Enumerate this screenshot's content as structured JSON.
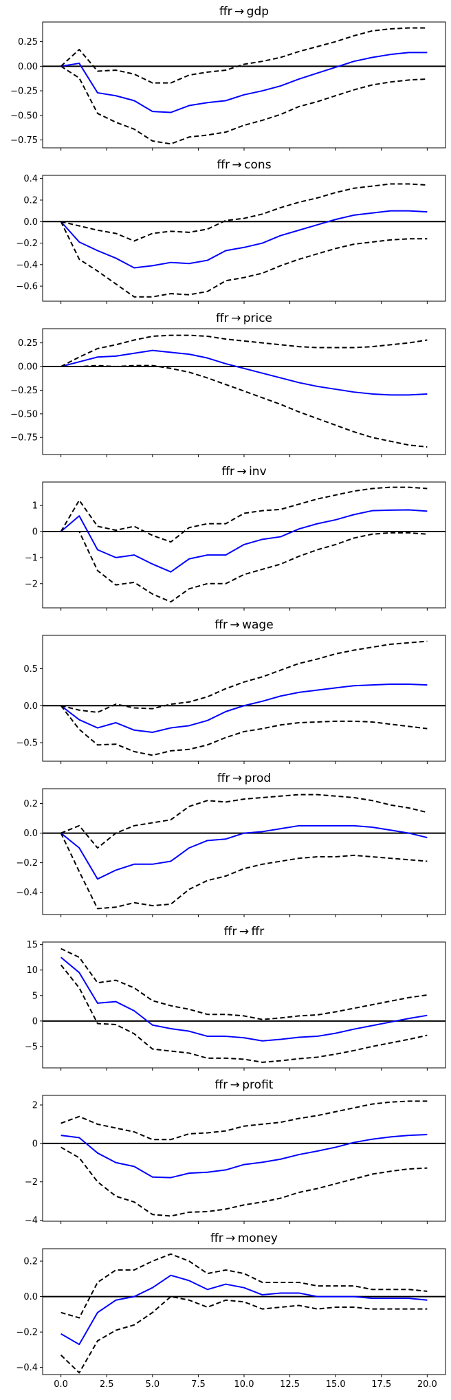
{
  "chart_data": [
    {
      "type": "line",
      "title": "ffr → gdp",
      "x": [
        0,
        1,
        2,
        3,
        4,
        5,
        6,
        7,
        8,
        9,
        10,
        11,
        12,
        13,
        14,
        15,
        16,
        17,
        18,
        19,
        20
      ],
      "series": [
        {
          "name": "irf",
          "values": [
            0,
            0.03,
            -0.27,
            -0.3,
            -0.35,
            -0.46,
            -0.47,
            -0.4,
            -0.37,
            -0.35,
            -0.29,
            -0.25,
            -0.2,
            -0.13,
            -0.07,
            -0.01,
            0.05,
            0.09,
            0.12,
            0.14,
            0.14
          ]
        },
        {
          "name": "upper",
          "values": [
            0,
            0.17,
            -0.05,
            -0.04,
            -0.08,
            -0.17,
            -0.17,
            -0.09,
            -0.06,
            -0.04,
            0.02,
            0.05,
            0.09,
            0.15,
            0.2,
            0.25,
            0.31,
            0.36,
            0.38,
            0.39,
            0.39
          ]
        },
        {
          "name": "lower",
          "values": [
            0,
            -0.12,
            -0.48,
            -0.57,
            -0.64,
            -0.76,
            -0.79,
            -0.72,
            -0.7,
            -0.67,
            -0.6,
            -0.55,
            -0.49,
            -0.41,
            -0.36,
            -0.3,
            -0.24,
            -0.19,
            -0.16,
            -0.14,
            -0.13
          ]
        }
      ],
      "ylim": [
        -0.83,
        0.45
      ],
      "yticks": [
        -0.75,
        -0.5,
        -0.25,
        0.0,
        0.25
      ],
      "ytick_labels": [
        "−0.75",
        "−0.50",
        "−0.25",
        "0.00",
        "0.25"
      ]
    },
    {
      "type": "line",
      "title": "ffr → cons",
      "x": [
        0,
        1,
        2,
        3,
        4,
        5,
        6,
        7,
        8,
        9,
        10,
        11,
        12,
        13,
        14,
        15,
        16,
        17,
        18,
        19,
        20
      ],
      "series": [
        {
          "name": "irf",
          "values": [
            0,
            -0.19,
            -0.27,
            -0.34,
            -0.43,
            -0.41,
            -0.38,
            -0.39,
            -0.36,
            -0.27,
            -0.24,
            -0.2,
            -0.13,
            -0.08,
            -0.03,
            0.02,
            0.06,
            0.08,
            0.1,
            0.1,
            0.09
          ]
        },
        {
          "name": "upper",
          "values": [
            0,
            -0.04,
            -0.08,
            -0.11,
            -0.18,
            -0.11,
            -0.09,
            -0.1,
            -0.07,
            0.01,
            0.03,
            0.07,
            0.13,
            0.18,
            0.22,
            0.27,
            0.31,
            0.33,
            0.35,
            0.35,
            0.34
          ]
        },
        {
          "name": "lower",
          "values": [
            0,
            -0.35,
            -0.46,
            -0.58,
            -0.7,
            -0.7,
            -0.67,
            -0.68,
            -0.65,
            -0.55,
            -0.52,
            -0.48,
            -0.41,
            -0.35,
            -0.3,
            -0.25,
            -0.21,
            -0.19,
            -0.17,
            -0.16,
            -0.16
          ]
        }
      ],
      "ylim": [
        -0.74,
        0.43
      ],
      "yticks": [
        -0.6,
        -0.4,
        -0.2,
        0.0,
        0.2,
        0.4
      ],
      "ytick_labels": [
        "−0.6",
        "−0.4",
        "−0.2",
        "0.0",
        "0.2",
        "0.4"
      ]
    },
    {
      "type": "line",
      "title": "ffr → price",
      "x": [
        0,
        1,
        2,
        3,
        4,
        5,
        6,
        7,
        8,
        9,
        10,
        11,
        12,
        13,
        14,
        15,
        16,
        17,
        18,
        19,
        20
      ],
      "series": [
        {
          "name": "irf",
          "values": [
            0,
            0.05,
            0.1,
            0.11,
            0.14,
            0.17,
            0.15,
            0.13,
            0.09,
            0.03,
            -0.02,
            -0.07,
            -0.12,
            -0.17,
            -0.21,
            -0.24,
            -0.27,
            -0.29,
            -0.3,
            -0.3,
            -0.29
          ]
        },
        {
          "name": "upper",
          "values": [
            0,
            0.1,
            0.19,
            0.23,
            0.28,
            0.32,
            0.33,
            0.33,
            0.32,
            0.29,
            0.27,
            0.25,
            0.23,
            0.21,
            0.2,
            0.2,
            0.2,
            0.21,
            0.23,
            0.25,
            0.28
          ]
        },
        {
          "name": "lower",
          "values": [
            0,
            0.0,
            0.01,
            0.0,
            0.01,
            0.01,
            -0.02,
            -0.06,
            -0.12,
            -0.19,
            -0.26,
            -0.33,
            -0.4,
            -0.48,
            -0.55,
            -0.62,
            -0.69,
            -0.75,
            -0.79,
            -0.83,
            -0.85
          ]
        }
      ],
      "ylim": [
        -0.93,
        0.4
      ],
      "yticks": [
        -0.75,
        -0.5,
        -0.25,
        0.0,
        0.25
      ],
      "ytick_labels": [
        "−0.75",
        "−0.50",
        "−0.25",
        "0.00",
        "0.25"
      ]
    },
    {
      "type": "line",
      "title": "ffr → inv",
      "x": [
        0,
        1,
        2,
        3,
        4,
        5,
        6,
        7,
        8,
        9,
        10,
        11,
        12,
        13,
        14,
        15,
        16,
        17,
        18,
        19,
        20
      ],
      "series": [
        {
          "name": "irf",
          "values": [
            0,
            0.6,
            -0.7,
            -1.0,
            -0.9,
            -1.25,
            -1.55,
            -1.05,
            -0.9,
            -0.9,
            -0.5,
            -0.3,
            -0.2,
            0.1,
            0.3,
            0.45,
            0.65,
            0.8,
            0.82,
            0.83,
            0.78
          ]
        },
        {
          "name": "upper",
          "values": [
            0,
            1.2,
            0.2,
            0.05,
            0.2,
            -0.15,
            -0.4,
            0.15,
            0.3,
            0.3,
            0.7,
            0.8,
            0.85,
            1.05,
            1.25,
            1.4,
            1.55,
            1.65,
            1.7,
            1.7,
            1.65
          ]
        },
        {
          "name": "lower",
          "values": [
            0,
            0.0,
            -1.5,
            -2.05,
            -1.95,
            -2.4,
            -2.7,
            -2.2,
            -2.0,
            -2.0,
            -1.65,
            -1.45,
            -1.25,
            -0.95,
            -0.7,
            -0.5,
            -0.25,
            -0.1,
            -0.05,
            -0.05,
            -0.1
          ]
        }
      ],
      "ylim": [
        -2.93,
        1.9
      ],
      "yticks": [
        -2,
        -1,
        0,
        1
      ],
      "ytick_labels": [
        "−2",
        "−1",
        "0",
        "1"
      ]
    },
    {
      "type": "line",
      "title": "ffr → wage",
      "x": [
        0,
        1,
        2,
        3,
        4,
        5,
        6,
        7,
        8,
        9,
        10,
        11,
        12,
        13,
        14,
        15,
        16,
        17,
        18,
        19,
        20
      ],
      "series": [
        {
          "name": "irf",
          "values": [
            0,
            -0.19,
            -0.3,
            -0.23,
            -0.33,
            -0.36,
            -0.3,
            -0.27,
            -0.2,
            -0.08,
            0.0,
            0.06,
            0.13,
            0.18,
            0.21,
            0.24,
            0.27,
            0.28,
            0.29,
            0.29,
            0.28
          ]
        },
        {
          "name": "upper",
          "values": [
            0,
            -0.06,
            -0.09,
            0.02,
            -0.03,
            -0.04,
            0.02,
            0.05,
            0.12,
            0.23,
            0.32,
            0.39,
            0.48,
            0.57,
            0.63,
            0.7,
            0.75,
            0.79,
            0.83,
            0.85,
            0.87
          ]
        },
        {
          "name": "lower",
          "values": [
            0,
            -0.32,
            -0.53,
            -0.52,
            -0.62,
            -0.67,
            -0.61,
            -0.59,
            -0.53,
            -0.43,
            -0.35,
            -0.31,
            -0.26,
            -0.23,
            -0.22,
            -0.21,
            -0.21,
            -0.22,
            -0.25,
            -0.28,
            -0.31
          ]
        }
      ],
      "ylim": [
        -0.75,
        0.95
      ],
      "yticks": [
        -0.5,
        0.0,
        0.5
      ],
      "ytick_labels": [
        "−0.5",
        "0.0",
        "0.5"
      ]
    },
    {
      "type": "line",
      "title": "ffr → prod",
      "x": [
        0,
        1,
        2,
        3,
        4,
        5,
        6,
        7,
        8,
        9,
        10,
        11,
        12,
        13,
        14,
        15,
        16,
        17,
        18,
        19,
        20
      ],
      "series": [
        {
          "name": "irf",
          "values": [
            0,
            -0.1,
            -0.31,
            -0.25,
            -0.21,
            -0.21,
            -0.19,
            -0.1,
            -0.05,
            -0.04,
            0.0,
            0.01,
            0.03,
            0.05,
            0.05,
            0.05,
            0.05,
            0.04,
            0.02,
            0.0,
            -0.03
          ]
        },
        {
          "name": "upper",
          "values": [
            0,
            0.05,
            -0.1,
            0.0,
            0.05,
            0.07,
            0.09,
            0.18,
            0.22,
            0.21,
            0.23,
            0.24,
            0.25,
            0.26,
            0.26,
            0.25,
            0.24,
            0.22,
            0.19,
            0.17,
            0.14
          ]
        },
        {
          "name": "lower",
          "values": [
            0,
            -0.26,
            -0.51,
            -0.5,
            -0.47,
            -0.49,
            -0.48,
            -0.38,
            -0.32,
            -0.29,
            -0.24,
            -0.21,
            -0.19,
            -0.17,
            -0.16,
            -0.16,
            -0.15,
            -0.16,
            -0.17,
            -0.18,
            -0.19
          ]
        }
      ],
      "ylim": [
        -0.55,
        0.3
      ],
      "yticks": [
        -0.4,
        -0.2,
        0.0,
        0.2
      ],
      "ytick_labels": [
        "−0.4",
        "−0.2",
        "0.0",
        "0.2"
      ]
    },
    {
      "type": "line",
      "title": "ffr → ffr",
      "x": [
        0,
        1,
        2,
        3,
        4,
        5,
        6,
        7,
        8,
        9,
        10,
        11,
        12,
        13,
        14,
        15,
        16,
        17,
        18,
        19,
        20
      ],
      "series": [
        {
          "name": "irf",
          "values": [
            12.5,
            9.5,
            3.5,
            3.8,
            2.0,
            -0.8,
            -1.5,
            -2.0,
            -3.0,
            -3.0,
            -3.3,
            -3.9,
            -3.6,
            -3.2,
            -3.0,
            -2.4,
            -1.6,
            -0.9,
            -0.2,
            0.5,
            1.1
          ]
        },
        {
          "name": "upper",
          "values": [
            14.2,
            12.5,
            7.5,
            8.0,
            6.5,
            4.0,
            3.0,
            2.3,
            1.3,
            1.3,
            1.0,
            0.3,
            0.6,
            1.0,
            1.2,
            1.8,
            2.5,
            3.2,
            3.9,
            4.6,
            5.1
          ]
        },
        {
          "name": "lower",
          "values": [
            11.0,
            6.5,
            -0.5,
            -0.7,
            -2.5,
            -5.5,
            -5.9,
            -6.3,
            -7.3,
            -7.3,
            -7.5,
            -8.1,
            -7.8,
            -7.4,
            -7.1,
            -6.5,
            -5.8,
            -5.0,
            -4.3,
            -3.6,
            -2.8
          ]
        }
      ],
      "ylim": [
        -9.2,
        15.5
      ],
      "yticks": [
        -5,
        0,
        5,
        10,
        15
      ],
      "ytick_labels": [
        "−5",
        "0",
        "5",
        "10",
        "15"
      ]
    },
    {
      "type": "line",
      "title": "ffr → profit",
      "x": [
        0,
        1,
        2,
        3,
        4,
        5,
        6,
        7,
        8,
        9,
        10,
        11,
        12,
        13,
        14,
        15,
        16,
        17,
        18,
        19,
        20
      ],
      "series": [
        {
          "name": "irf",
          "values": [
            0.42,
            0.3,
            -0.5,
            -1.0,
            -1.2,
            -1.75,
            -1.78,
            -1.55,
            -1.5,
            -1.38,
            -1.1,
            -0.98,
            -0.82,
            -0.58,
            -0.4,
            -0.2,
            0.05,
            0.22,
            0.34,
            0.42,
            0.46
          ]
        },
        {
          "name": "upper",
          "values": [
            1.05,
            1.4,
            1.0,
            0.8,
            0.6,
            0.2,
            0.2,
            0.5,
            0.55,
            0.65,
            0.9,
            1.0,
            1.1,
            1.3,
            1.45,
            1.65,
            1.85,
            2.05,
            2.15,
            2.2,
            2.2
          ]
        },
        {
          "name": "lower",
          "values": [
            -0.2,
            -0.75,
            -2.0,
            -2.75,
            -3.05,
            -3.7,
            -3.78,
            -3.58,
            -3.55,
            -3.42,
            -3.2,
            -3.05,
            -2.85,
            -2.55,
            -2.35,
            -2.1,
            -1.85,
            -1.6,
            -1.45,
            -1.33,
            -1.28
          ]
        }
      ],
      "ylim": [
        -4.05,
        2.5
      ],
      "yticks": [
        -4,
        -2,
        0,
        2
      ],
      "ytick_labels": [
        "−4",
        "−2",
        "0",
        "2"
      ]
    },
    {
      "type": "line",
      "title": "ffr → money",
      "x": [
        0,
        1,
        2,
        3,
        4,
        5,
        6,
        7,
        8,
        9,
        10,
        11,
        12,
        13,
        14,
        15,
        16,
        17,
        18,
        19,
        20
      ],
      "series": [
        {
          "name": "irf",
          "values": [
            -0.21,
            -0.27,
            -0.09,
            -0.02,
            0.0,
            0.05,
            0.12,
            0.09,
            0.04,
            0.07,
            0.05,
            0.01,
            0.02,
            0.02,
            0.0,
            0.0,
            0.0,
            -0.01,
            -0.01,
            -0.01,
            -0.02
          ]
        },
        {
          "name": "upper",
          "values": [
            -0.09,
            -0.12,
            0.08,
            0.15,
            0.15,
            0.2,
            0.24,
            0.2,
            0.13,
            0.15,
            0.13,
            0.08,
            0.08,
            0.08,
            0.06,
            0.06,
            0.06,
            0.04,
            0.04,
            0.04,
            0.03
          ]
        },
        {
          "name": "lower",
          "values": [
            -0.33,
            -0.43,
            -0.25,
            -0.19,
            -0.16,
            -0.09,
            0.0,
            -0.02,
            -0.06,
            -0.02,
            -0.03,
            -0.07,
            -0.06,
            -0.05,
            -0.07,
            -0.06,
            -0.06,
            -0.07,
            -0.07,
            -0.07,
            -0.07
          ]
        }
      ],
      "ylim": [
        -0.44,
        0.27
      ],
      "yticks": [
        -0.4,
        -0.2,
        0.0,
        0.2
      ],
      "ytick_labels": [
        "−0.4",
        "−0.2",
        "0.0",
        "0.2"
      ]
    }
  ],
  "shared_x_axis": {
    "xlim": [
      -1.0,
      21.0
    ],
    "xticks": [
      0.0,
      2.5,
      5.0,
      7.5,
      10.0,
      12.5,
      15.0,
      17.5,
      20.0
    ],
    "xtick_labels": [
      "0.0",
      "2.5",
      "5.0",
      "7.5",
      "10.0",
      "12.5",
      "15.0",
      "17.5",
      "20.0"
    ]
  },
  "colors": {
    "irf": "#0000ff",
    "band": "#000000",
    "zero_line": "#000000"
  }
}
